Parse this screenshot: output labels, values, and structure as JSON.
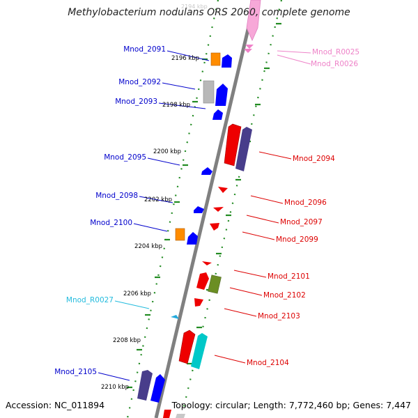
{
  "title": "Methylobacterium nodulans ORS 2060, complete genome",
  "footer": {
    "accession": "Accession: NC_011894",
    "summary": "Topology: circular; Length: 7,772,460 bp; Genes: 7,447"
  },
  "colors": {
    "backbone": "#808080",
    "dots": "#228b22",
    "left_label": "#0000cc",
    "right_label": "#dd0000",
    "rna_label_pink": "#ee82c8",
    "rna_label_cyan": "#22bbdd"
  },
  "kbp_marks": [
    {
      "label": "2196 kbp"
    },
    {
      "label": "2198 kbp"
    },
    {
      "label": "2200 kbp"
    },
    {
      "label": "2202 kbp"
    },
    {
      "label": "2204 kbp"
    },
    {
      "label": "2206 kbp"
    },
    {
      "label": "2208 kbp"
    },
    {
      "label": "2210 kbp"
    }
  ],
  "left_genes": [
    {
      "id": "Mnod_2091"
    },
    {
      "id": "Mnod_2092"
    },
    {
      "id": "Mnod_2093"
    },
    {
      "id": "Mnod_2095"
    },
    {
      "id": "Mnod_2098"
    },
    {
      "id": "Mnod_2100"
    },
    {
      "id": "Mnod_R0027"
    },
    {
      "id": "Mnod_2105"
    }
  ],
  "right_genes": [
    {
      "id": "Mnod_R0025"
    },
    {
      "id": "Mnod_R0026"
    },
    {
      "id": "Mnod_2094"
    },
    {
      "id": "Mnod_2096"
    },
    {
      "id": "Mnod_2097"
    },
    {
      "id": "Mnod_2099"
    },
    {
      "id": "Mnod_2101"
    },
    {
      "id": "Mnod_2102"
    },
    {
      "id": "Mnod_2103"
    },
    {
      "id": "Mnod_2104"
    }
  ]
}
